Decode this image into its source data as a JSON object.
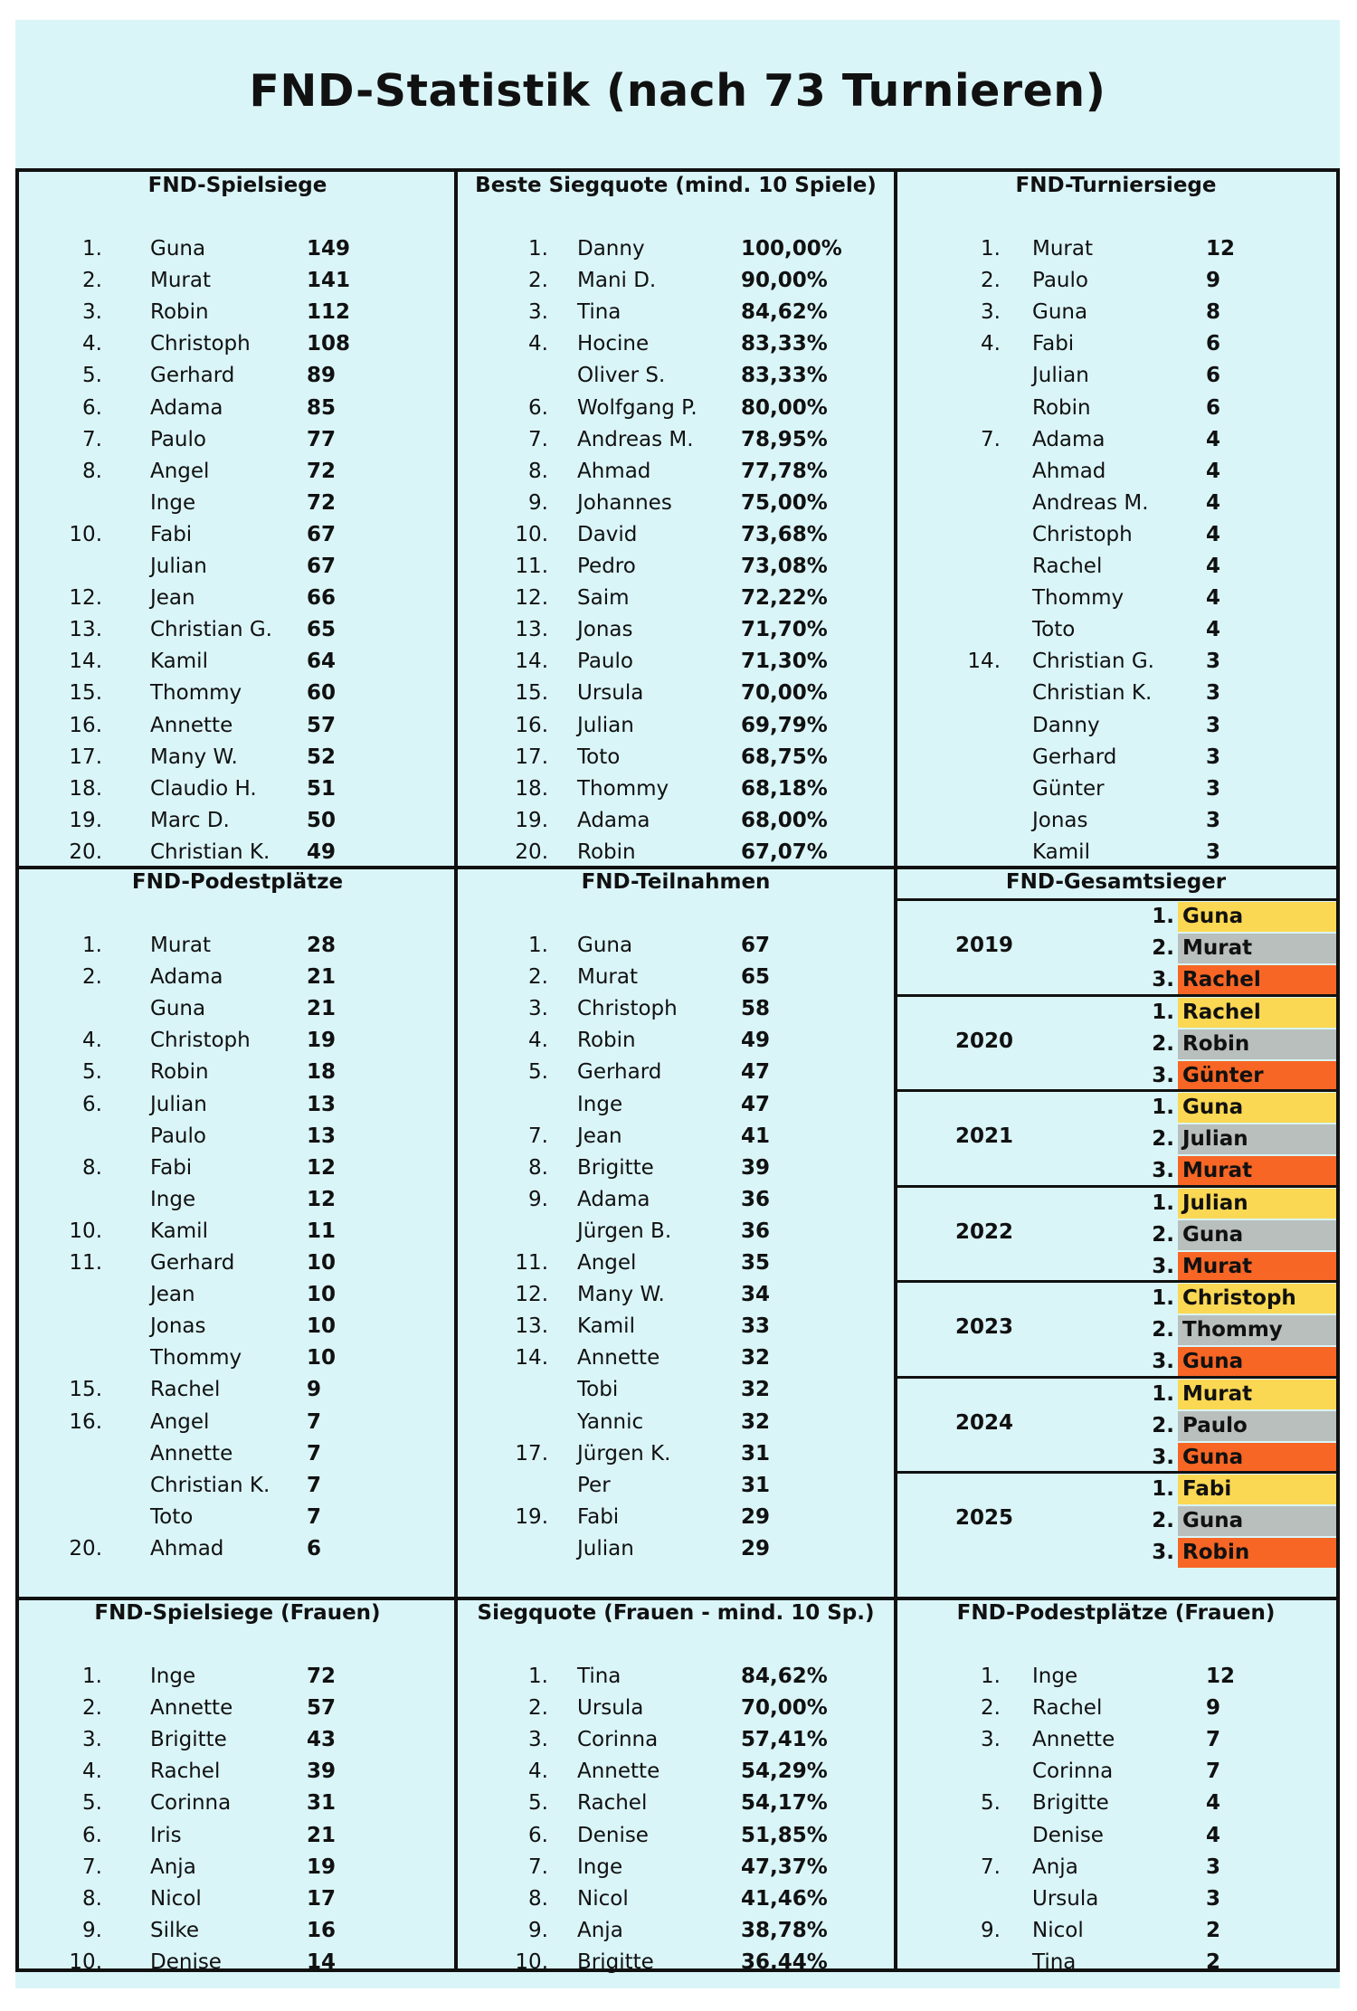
{
  "title": "FND-Statistik (nach 73 Turnieren)",
  "colors": {
    "gold": "#fbd853",
    "silver": "#b8bfbd",
    "bronze": "#f76625",
    "background": "#daf5f8"
  },
  "sections": [
    {
      "title": "FND-Spielsiege",
      "rows": [
        [
          "1.",
          "Guna",
          "149"
        ],
        [
          "2.",
          "Murat",
          "141"
        ],
        [
          "3.",
          "Robin",
          "112"
        ],
        [
          "4.",
          "Christoph",
          "108"
        ],
        [
          "5.",
          "Gerhard",
          "89"
        ],
        [
          "6.",
          "Adama",
          "85"
        ],
        [
          "7.",
          "Paulo",
          "77"
        ],
        [
          "8.",
          "Angel",
          "72"
        ],
        [
          "",
          "Inge",
          "72"
        ],
        [
          "10.",
          "Fabi",
          "67"
        ],
        [
          "",
          "Julian",
          "67"
        ],
        [
          "12.",
          "Jean",
          "66"
        ],
        [
          "13.",
          "Christian G.",
          "65"
        ],
        [
          "14.",
          "Kamil",
          "64"
        ],
        [
          "15.",
          "Thommy",
          "60"
        ],
        [
          "16.",
          "Annette",
          "57"
        ],
        [
          "17.",
          "Many W.",
          "52"
        ],
        [
          "18.",
          "Claudio H.",
          "51"
        ],
        [
          "19.",
          "Marc D.",
          "50"
        ],
        [
          "20.",
          "Christian K.",
          "49"
        ]
      ]
    },
    {
      "title": "Beste Siegquote (mind. 10 Spiele)",
      "rows": [
        [
          "1.",
          "Danny",
          "100,00%"
        ],
        [
          "2.",
          "Mani D.",
          "90,00%"
        ],
        [
          "3.",
          "Tina",
          "84,62%"
        ],
        [
          "4.",
          "Hocine",
          "83,33%"
        ],
        [
          "",
          "Oliver S.",
          "83,33%"
        ],
        [
          "6.",
          "Wolfgang P.",
          "80,00%"
        ],
        [
          "7.",
          "Andreas M.",
          "78,95%"
        ],
        [
          "8.",
          "Ahmad",
          "77,78%"
        ],
        [
          "9.",
          "Johannes",
          "75,00%"
        ],
        [
          "10.",
          "David",
          "73,68%"
        ],
        [
          "11.",
          "Pedro",
          "73,08%"
        ],
        [
          "12.",
          "Saim",
          "72,22%"
        ],
        [
          "13.",
          "Jonas",
          "71,70%"
        ],
        [
          "14.",
          "Paulo",
          "71,30%"
        ],
        [
          "15.",
          "Ursula",
          "70,00%"
        ],
        [
          "16.",
          "Julian",
          "69,79%"
        ],
        [
          "17.",
          "Toto",
          "68,75%"
        ],
        [
          "18.",
          "Thommy",
          "68,18%"
        ],
        [
          "19.",
          "Adama",
          "68,00%"
        ],
        [
          "20.",
          "Robin",
          "67,07%"
        ]
      ]
    },
    {
      "title": "FND-Turniersiege",
      "rows": [
        [
          "1.",
          "Murat",
          "12"
        ],
        [
          "2.",
          "Paulo",
          "9"
        ],
        [
          "3.",
          "Guna",
          "8"
        ],
        [
          "4.",
          "Fabi",
          "6"
        ],
        [
          "",
          "Julian",
          "6"
        ],
        [
          "",
          "Robin",
          "6"
        ],
        [
          "7.",
          "Adama",
          "4"
        ],
        [
          "",
          "Ahmad",
          "4"
        ],
        [
          "",
          "Andreas M.",
          "4"
        ],
        [
          "",
          "Christoph",
          "4"
        ],
        [
          "",
          "Rachel",
          "4"
        ],
        [
          "",
          "Thommy",
          "4"
        ],
        [
          "",
          "Toto",
          "4"
        ],
        [
          "14.",
          "Christian G.",
          "3"
        ],
        [
          "",
          "Christian K.",
          "3"
        ],
        [
          "",
          "Danny",
          "3"
        ],
        [
          "",
          "Gerhard",
          "3"
        ],
        [
          "",
          "Günter",
          "3"
        ],
        [
          "",
          "Jonas",
          "3"
        ],
        [
          "",
          "Kamil",
          "3"
        ]
      ]
    },
    {
      "title": "FND-Podestplätze",
      "rows": [
        [
          "1.",
          "Murat",
          "28"
        ],
        [
          "2.",
          "Adama",
          "21"
        ],
        [
          "",
          "Guna",
          "21"
        ],
        [
          "4.",
          "Christoph",
          "19"
        ],
        [
          "5.",
          "Robin",
          "18"
        ],
        [
          "6.",
          "Julian",
          "13"
        ],
        [
          "",
          "Paulo",
          "13"
        ],
        [
          "8.",
          "Fabi",
          "12"
        ],
        [
          "",
          "Inge",
          "12"
        ],
        [
          "10.",
          "Kamil",
          "11"
        ],
        [
          "11.",
          "Gerhard",
          "10"
        ],
        [
          "",
          "Jean",
          "10"
        ],
        [
          "",
          "Jonas",
          "10"
        ],
        [
          "",
          "Thommy",
          "10"
        ],
        [
          "15.",
          "Rachel",
          "9"
        ],
        [
          "16.",
          "Angel",
          "7"
        ],
        [
          "",
          "Annette",
          "7"
        ],
        [
          "",
          "Christian K.",
          "7"
        ],
        [
          "",
          "Toto",
          "7"
        ],
        [
          "20.",
          "Ahmad",
          "6"
        ]
      ]
    },
    {
      "title": "FND-Teilnahmen",
      "rows": [
        [
          "1.",
          "Guna",
          "67"
        ],
        [
          "2.",
          "Murat",
          "65"
        ],
        [
          "3.",
          "Christoph",
          "58"
        ],
        [
          "4.",
          "Robin",
          "49"
        ],
        [
          "5.",
          "Gerhard",
          "47"
        ],
        [
          "",
          "Inge",
          "47"
        ],
        [
          "7.",
          "Jean",
          "41"
        ],
        [
          "8.",
          "Brigitte",
          "39"
        ],
        [
          "9.",
          "Adama",
          "36"
        ],
        [
          "",
          "Jürgen B.",
          "36"
        ],
        [
          "11.",
          "Angel",
          "35"
        ],
        [
          "12.",
          "Many W.",
          "34"
        ],
        [
          "13.",
          "Kamil",
          "33"
        ],
        [
          "14.",
          "Annette",
          "32"
        ],
        [
          "",
          "Tobi",
          "32"
        ],
        [
          "",
          "Yannic",
          "32"
        ],
        [
          "17.",
          "Jürgen K.",
          "31"
        ],
        [
          "",
          "Per",
          "31"
        ],
        [
          "19.",
          "Fabi",
          "29"
        ],
        [
          "",
          "Julian",
          "29"
        ]
      ]
    },
    {
      "title": "FND-Spielsiege (Frauen)",
      "rows": [
        [
          "1.",
          "Inge",
          "72"
        ],
        [
          "2.",
          "Annette",
          "57"
        ],
        [
          "3.",
          "Brigitte",
          "43"
        ],
        [
          "4.",
          "Rachel",
          "39"
        ],
        [
          "5.",
          "Corinna",
          "31"
        ],
        [
          "6.",
          "Iris",
          "21"
        ],
        [
          "7.",
          "Anja",
          "19"
        ],
        [
          "8.",
          "Nicol",
          "17"
        ],
        [
          "9.",
          "Silke",
          "16"
        ],
        [
          "10.",
          "Denise",
          "14"
        ]
      ]
    },
    {
      "title": "Siegquote (Frauen - mind. 10 Sp.)",
      "rows": [
        [
          "1.",
          "Tina",
          "84,62%"
        ],
        [
          "2.",
          "Ursula",
          "70,00%"
        ],
        [
          "3.",
          "Corinna",
          "57,41%"
        ],
        [
          "4.",
          "Annette",
          "54,29%"
        ],
        [
          "5.",
          "Rachel",
          "54,17%"
        ],
        [
          "6.",
          "Denise",
          "51,85%"
        ],
        [
          "7.",
          "Inge",
          "47,37%"
        ],
        [
          "8.",
          "Nicol",
          "41,46%"
        ],
        [
          "9.",
          "Anja",
          "38,78%"
        ],
        [
          "10.",
          "Brigitte",
          "36,44%"
        ]
      ]
    },
    {
      "title": "FND-Podestplätze (Frauen)",
      "rows": [
        [
          "1.",
          "Inge",
          "12"
        ],
        [
          "2.",
          "Rachel",
          "9"
        ],
        [
          "3.",
          "Annette",
          "7"
        ],
        [
          "",
          "Corinna",
          "7"
        ],
        [
          "5.",
          "Brigitte",
          "4"
        ],
        [
          "",
          "Denise",
          "4"
        ],
        [
          "7.",
          "Anja",
          "3"
        ],
        [
          "",
          "Ursula",
          "3"
        ],
        [
          "9.",
          "Nicol",
          "2"
        ],
        [
          "",
          "Tina",
          "2"
        ]
      ]
    }
  ],
  "overall": {
    "title": "FND-Gesamtsieger",
    "years": [
      {
        "year": "2019",
        "podium": [
          [
            "1.",
            "Guna"
          ],
          [
            "2.",
            "Murat"
          ],
          [
            "3.",
            "Rachel"
          ]
        ]
      },
      {
        "year": "2020",
        "podium": [
          [
            "1.",
            "Rachel"
          ],
          [
            "2.",
            "Robin"
          ],
          [
            "3.",
            "Günter"
          ]
        ]
      },
      {
        "year": "2021",
        "podium": [
          [
            "1.",
            "Guna"
          ],
          [
            "2.",
            "Julian"
          ],
          [
            "3.",
            "Murat"
          ]
        ]
      },
      {
        "year": "2022",
        "podium": [
          [
            "1.",
            "Julian"
          ],
          [
            "2.",
            "Guna"
          ],
          [
            "3.",
            "Murat"
          ]
        ]
      },
      {
        "year": "2023",
        "podium": [
          [
            "1.",
            "Christoph"
          ],
          [
            "2.",
            "Thommy"
          ],
          [
            "3.",
            "Guna"
          ]
        ]
      },
      {
        "year": "2024",
        "podium": [
          [
            "1.",
            "Murat"
          ],
          [
            "2.",
            "Paulo"
          ],
          [
            "3.",
            "Guna"
          ]
        ]
      },
      {
        "year": "2025",
        "podium": [
          [
            "1.",
            "Fabi"
          ],
          [
            "2.",
            "Guna"
          ],
          [
            "3.",
            "Robin"
          ]
        ]
      }
    ]
  }
}
